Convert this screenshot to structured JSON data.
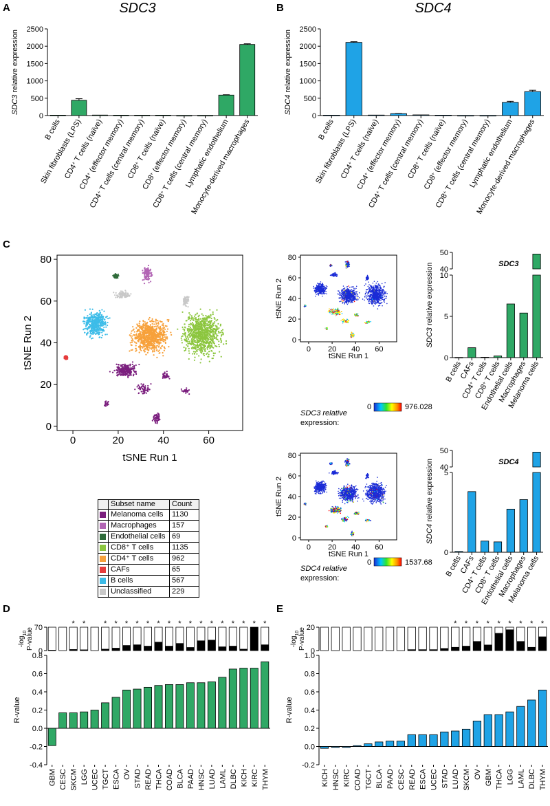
{
  "panels": {
    "A": "A",
    "B": "B",
    "C": "C",
    "D": "D",
    "E": "E"
  },
  "colors": {
    "green": "#2fa865",
    "blue": "#1fa3e6",
    "black": "#000000",
    "melanoma": "#7b1f7e",
    "macrophages": "#b265b4",
    "endothelial": "#2f6b3a",
    "cd8": "#8cc63f",
    "cd4": "#f7a13b",
    "cafs": "#e63c3c",
    "bcells": "#3cbce8",
    "unclassified": "#c8c8c8",
    "expr_low": "#1a2bd6"
  },
  "tsne": {
    "xlabel": "tSNE Run 1",
    "ylabel": "tSNE Run 2",
    "xticks": [
      "0",
      "20",
      "40",
      "60"
    ],
    "yticks": [
      "0",
      "20",
      "40",
      "60",
      "80"
    ],
    "sdc3_expr_label": "SDC3 relative",
    "sdc3_expr_label2": "expression:",
    "sdc3_min": "0",
    "sdc3_max": "976.028",
    "sdc4_expr_label": "SDC4 relative",
    "sdc4_expr_label2": "expression:",
    "sdc4_min": "0",
    "sdc4_max": "1537.68"
  },
  "legend_table": {
    "header_name": "Subset name",
    "header_count": "Count",
    "rows": [
      {
        "name": "Melanoma cells",
        "count": "1130",
        "color": "#7b1f7e"
      },
      {
        "name": "Macrophages",
        "count": "157",
        "color": "#b265b4"
      },
      {
        "name": "Endothelial cells",
        "count": "69",
        "color": "#2f6b3a"
      },
      {
        "name": "CD8⁺ T cells",
        "count": "1135",
        "color": "#8cc63f"
      },
      {
        "name": "CD4⁺ T cells",
        "count": "962",
        "color": "#f7a13b"
      },
      {
        "name": "CAFs",
        "count": "65",
        "color": "#e63c3c"
      },
      {
        "name": "B cells",
        "count": "567",
        "color": "#3cbce8"
      },
      {
        "name": "Unclassified",
        "count": "229",
        "color": "#c8c8c8"
      }
    ]
  },
  "chart_data": [
    {
      "id": "A",
      "type": "bar",
      "title": "SDC3",
      "ylabel": "SDC3 relative expression",
      "ylim": [
        0,
        2500
      ],
      "yticks": [
        0,
        500,
        1000,
        1500,
        2000,
        2500
      ],
      "categories": [
        "B cells",
        "Skin fibroblasts (LPS)",
        "CD4⁺ T cells (naïve)",
        "CD4⁺ (effector memory)",
        "CD4⁺ T cells (central memory)",
        "CD8⁺ T cells (naïve)",
        "CD8⁺ (effector memory)",
        "CD8⁺ T cells (central memory)",
        "Lymphatic endothelium",
        "Monocyte-derived macrophages"
      ],
      "values": [
        10,
        440,
        15,
        10,
        8,
        10,
        5,
        6,
        590,
        2050
      ],
      "errors": [
        0,
        45,
        0,
        0,
        0,
        0,
        0,
        0,
        10,
        20
      ]
    },
    {
      "id": "B",
      "type": "bar",
      "title": "SDC4",
      "ylabel": "SDC4 relative expression",
      "ylim": [
        0,
        2500
      ],
      "yticks": [
        0,
        500,
        1000,
        1500,
        2000,
        2500
      ],
      "categories": [
        "B cells",
        "Skin fibroblasts (LPS)",
        "CD4⁺ T cells (naïve)",
        "CD4⁺ (effector memory)",
        "CD4⁺ T cells (central memory)",
        "CD8⁺ T cells (naïve)",
        "CD8⁺ (effector memory)",
        "CD8⁺ T cells (central memory)",
        "Lymphatic endothelium",
        "Monocyte-derived macrophages"
      ],
      "values": [
        10,
        2110,
        15,
        55,
        20,
        10,
        5,
        5,
        380,
        690
      ],
      "errors": [
        0,
        20,
        0,
        5,
        0,
        0,
        0,
        0,
        30,
        40
      ]
    },
    {
      "id": "C-SDC3",
      "type": "bar",
      "title": "SDC3",
      "ylabel": "SDC3 relative expression",
      "ylim": [
        0,
        50
      ],
      "axis_break": [
        10,
        40
      ],
      "yticks": [
        0,
        5,
        10,
        40,
        50
      ],
      "categories": [
        "B cells",
        "CAFs",
        "CD4⁺ T cells",
        "CD8⁺ T cells",
        "Endothelial cells",
        "Macrophages",
        "Melanoma cells"
      ],
      "values": [
        0.02,
        1.2,
        0.05,
        0.2,
        6.5,
        5.4,
        49
      ]
    },
    {
      "id": "C-SDC4",
      "type": "bar",
      "title": "SDC4",
      "ylabel": "SDC4 relative expression",
      "ylim": [
        0,
        50
      ],
      "axis_break": [
        5,
        40
      ],
      "yticks": [
        0,
        5,
        40,
        50
      ],
      "categories": [
        "B cells",
        "CAFs",
        "CD4⁺ T cells",
        "CD8⁺ T cells",
        "Endothelial cells",
        "Macrophages",
        "Melanoma cells"
      ],
      "values": [
        0.05,
        3.8,
        0.7,
        0.65,
        2.7,
        3.3,
        49
      ]
    },
    {
      "id": "D",
      "type": "bar",
      "ylabel": "R-value",
      "ylim": [
        -0.4,
        0.8
      ],
      "yticks": [
        -0.4,
        -0.2,
        0.0,
        0.2,
        0.4,
        0.6,
        0.8
      ],
      "top_ylabel": "-log10 P-value",
      "top_ylim": [
        0,
        70
      ],
      "top_yticks": [
        0,
        35,
        70
      ],
      "categories": [
        "GBM",
        "CESC",
        "SKCM",
        "LGG",
        "UCEC",
        "TGCT",
        "ESCA",
        "OV",
        "STAD",
        "READ",
        "THCA",
        "COAD",
        "BLCA",
        "PAAD",
        "HNSC",
        "LUAD",
        "LAML",
        "DLBC",
        "KICH",
        "KIRC",
        "THYM"
      ],
      "values": [
        -0.19,
        0.17,
        0.17,
        0.18,
        0.2,
        0.28,
        0.34,
        0.42,
        0.43,
        0.45,
        0.47,
        0.48,
        0.48,
        0.5,
        0.5,
        0.51,
        0.56,
        0.65,
        0.66,
        0.66,
        0.73
      ],
      "neglog10p": [
        2,
        0,
        4,
        3,
        0,
        5,
        8,
        16,
        18,
        14,
        26,
        14,
        22,
        10,
        30,
        32,
        12,
        14,
        5,
        70,
        18
      ],
      "significant": [
        false,
        false,
        true,
        true,
        false,
        true,
        true,
        true,
        true,
        true,
        true,
        true,
        true,
        true,
        true,
        true,
        true,
        true,
        true,
        true,
        true
      ]
    },
    {
      "id": "E",
      "type": "bar",
      "ylabel": "R-value",
      "ylim": [
        -0.2,
        1.0
      ],
      "yticks": [
        -0.2,
        0.0,
        0.2,
        0.4,
        0.6,
        0.8,
        1.0
      ],
      "top_ylabel": "-log10 P-value",
      "top_ylim": [
        0,
        20
      ],
      "top_yticks": [
        0,
        10,
        20
      ],
      "categories": [
        "KICH",
        "HNSC",
        "KIRC",
        "COAD",
        "TGCT",
        "BLCA",
        "PAAD",
        "CESC",
        "READ",
        "ESCA",
        "UCEC",
        "STAD",
        "LUAD",
        "SKCM",
        "OV",
        "GBM",
        "THCA",
        "LGG",
        "LAML",
        "DLBC",
        "THYM"
      ],
      "values": [
        -0.02,
        -0.01,
        -0.01,
        0.01,
        0.03,
        0.05,
        0.06,
        0.06,
        0.13,
        0.13,
        0.13,
        0.16,
        0.17,
        0.19,
        0.28,
        0.35,
        0.35,
        0.38,
        0.44,
        0.51,
        0.62
      ],
      "neglog10p": [
        0,
        0,
        0,
        0,
        0,
        0,
        0,
        0,
        1,
        1,
        1,
        2,
        3,
        4,
        8,
        5,
        15,
        18,
        8,
        3,
        12
      ],
      "significant": [
        false,
        false,
        false,
        false,
        false,
        false,
        false,
        false,
        false,
        false,
        false,
        false,
        true,
        true,
        true,
        true,
        true,
        true,
        true,
        true,
        true
      ]
    }
  ]
}
